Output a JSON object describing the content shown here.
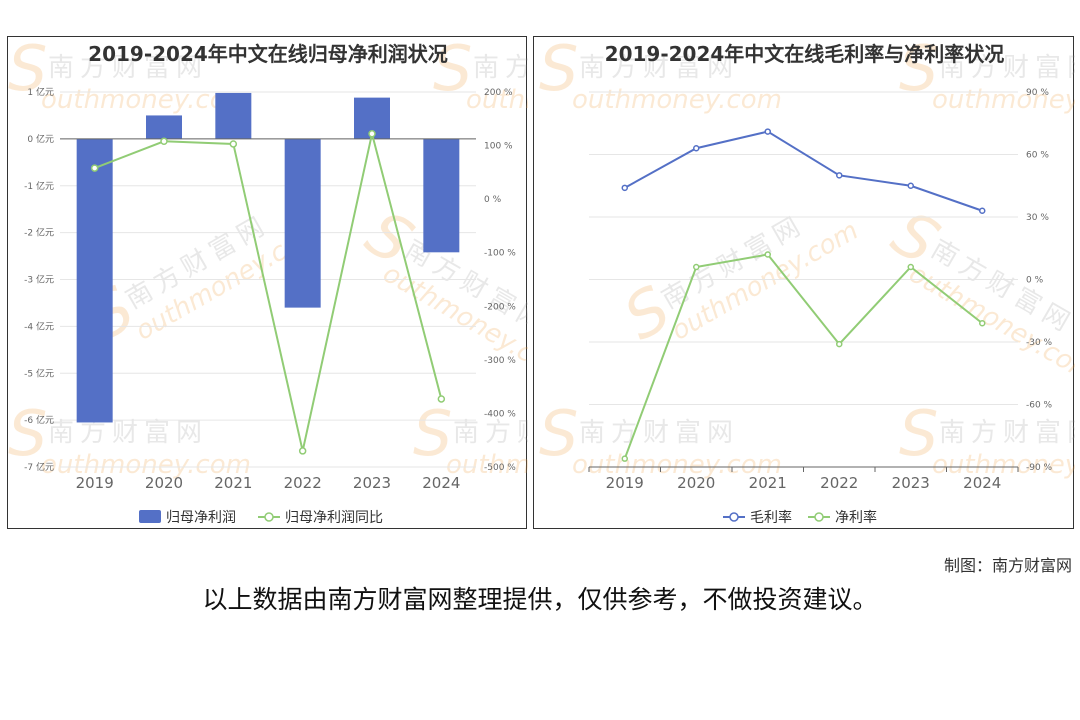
{
  "chart_data": [
    {
      "type": "bar+line",
      "title": "2019-2024年中文在线归母净利润状况",
      "categories": [
        "2019",
        "2020",
        "2021",
        "2022",
        "2023",
        "2024"
      ],
      "y_left": {
        "ticks": [
          "1 亿元",
          "0 亿元",
          "-1 亿元",
          "-2 亿元",
          "-3 亿元",
          "-4 亿元",
          "-5 亿元",
          "-6 亿元",
          "-7 亿元"
        ],
        "range": [
          -7,
          1
        ]
      },
      "y_right": {
        "ticks": [
          "200 %",
          "100 %",
          "0 %",
          "-100 %",
          "-200 %",
          "-300 %",
          "-400 %",
          "-500 %"
        ],
        "range": [
          -500,
          200
        ]
      },
      "series": [
        {
          "name": "归母净利润",
          "kind": "bar",
          "axis": "left",
          "color": "#5470c6",
          "values": [
            -6.05,
            0.5,
            0.98,
            -3.6,
            0.88,
            -2.42
          ]
        },
        {
          "name": "归母净利润同比",
          "kind": "line",
          "axis": "right",
          "color": "#91cc75",
          "values": [
            58,
            108,
            103,
            -470,
            122,
            -373
          ]
        }
      ],
      "legend": "bottom"
    },
    {
      "type": "line",
      "title": "2019-2024年中文在线毛利率与净利率状况",
      "categories": [
        "2019",
        "2020",
        "2021",
        "2022",
        "2023",
        "2024"
      ],
      "y_right": {
        "ticks": [
          "90 %",
          "60 %",
          "30 %",
          "0 %",
          "-30 %",
          "-60 %",
          "-90 %"
        ],
        "range": [
          -90,
          90
        ]
      },
      "series": [
        {
          "name": "毛利率",
          "color": "#5470c6",
          "values": [
            44,
            63,
            71,
            50,
            45,
            33
          ]
        },
        {
          "name": "净利率",
          "color": "#91cc75",
          "values": [
            -86,
            6,
            12,
            -31,
            6,
            -21
          ]
        }
      ],
      "legend": "bottom"
    }
  ],
  "watermark": {
    "cn": "南方财富网",
    "en": "outhmoney.com",
    "logo_letter": "S"
  },
  "credit": "制图：南方财富网",
  "footer": "以上数据由南方财富网整理提供，仅供参考，不做投资建议。"
}
